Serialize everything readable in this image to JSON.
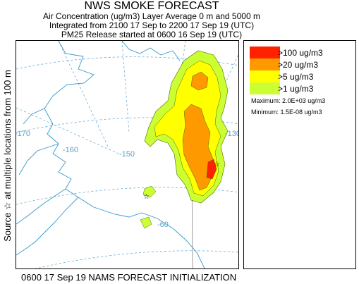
{
  "header": {
    "title": "NWS SMOKE FORECAST",
    "line1": "Air Concentration (ug/m3) Layer Average    0 m and  5000 m",
    "line2": "Integrated from 2100 17 Sep to 2200 17 Sep 19 (UTC)",
    "line3": "PM25 Release started at 0600 16 Sep 19 (UTC)"
  },
  "side_label": "Source ☆  at multiple locations    from   100 m",
  "footer": "0600 17 Sep 19 NAMS FORECAST INITIALIZATION",
  "map": {
    "longitude_labels": [
      "-170",
      "-160",
      "-150",
      "-130",
      "-60"
    ],
    "colors": {
      "coast": "#3399cc",
      "grid": "#6aaad4",
      "level_100": "#ff2200",
      "level_20": "#ff9900",
      "level_5": "#ffff00",
      "level_1": "#ccff33"
    }
  },
  "legend": {
    "items": [
      {
        "label": ">100 ug/m3",
        "color": "#ff2200"
      },
      {
        "label": ">20 ug/m3",
        "color": "#ff9900"
      },
      {
        "label": ">5 ug/m3",
        "color": "#ffff00"
      },
      {
        "label": ">1 ug/m3",
        "color": "#ccff33"
      }
    ],
    "maximum": "Maximum: 2.0E+03 ug/m3",
    "minimum": "Minimum: 1.5E-08 ug/m3"
  }
}
